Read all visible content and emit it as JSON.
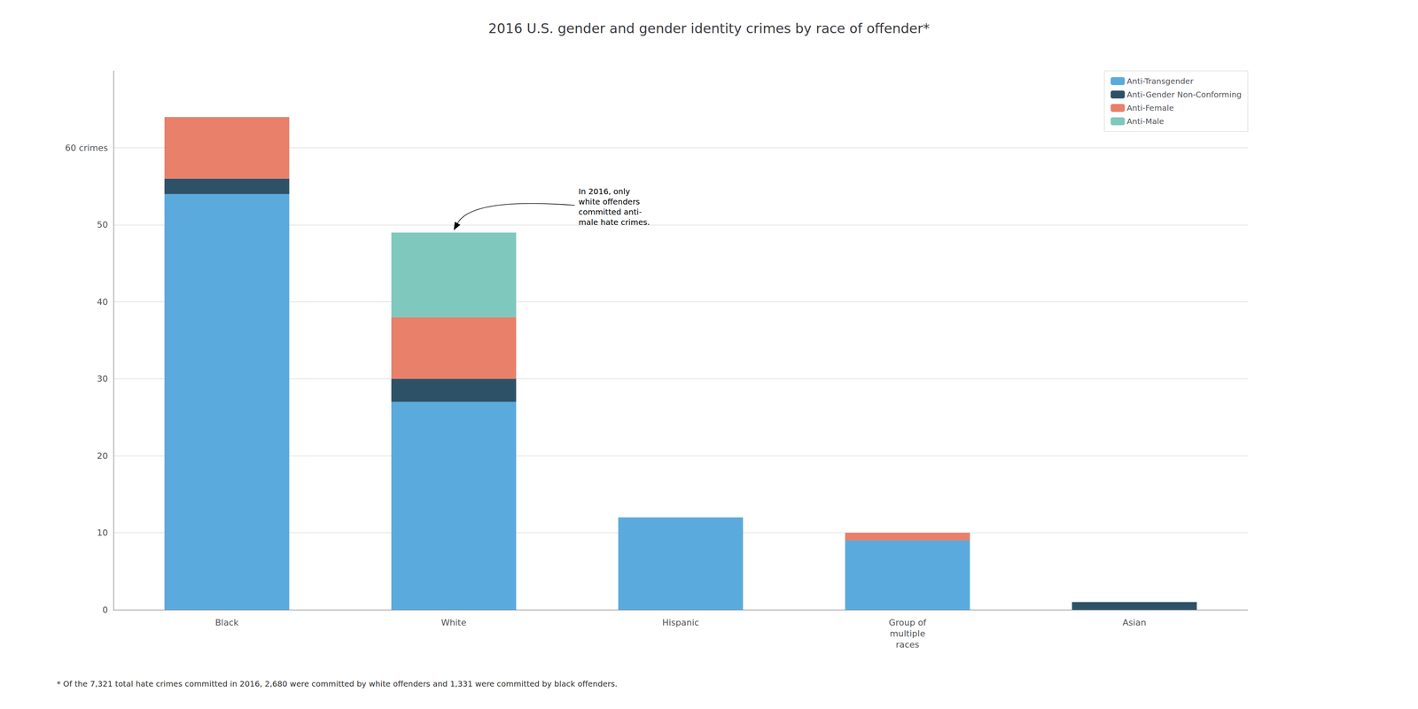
{
  "chart_data": {
    "type": "bar",
    "title": "2016 U.S. gender and gender identity crimes by race of offender*",
    "categories": [
      "Black",
      "White",
      "Hispanic",
      "Group of\nmultiple\nraces",
      "Asian"
    ],
    "series": [
      {
        "name": "Anti-Transgender",
        "color": "#5baade",
        "values": [
          54,
          27,
          12,
          9,
          0
        ]
      },
      {
        "name": "Anti-Gender Non-Conforming",
        "color": "#2d5167",
        "values": [
          2,
          3,
          0,
          0,
          1
        ]
      },
      {
        "name": "Anti-Female",
        "color": "#e8806a",
        "values": [
          8,
          8,
          0,
          1,
          0
        ]
      },
      {
        "name": "Anti-Male",
        "color": "#7ec8be",
        "values": [
          0,
          11,
          0,
          0,
          0
        ]
      }
    ],
    "stacked": true,
    "ylim": [
      0,
      70
    ],
    "yticks": [
      0,
      10,
      20,
      30,
      40,
      50,
      {
        "value": 60,
        "label": "60 crimes"
      }
    ],
    "grid": true,
    "legend": "upper right",
    "annotation": "In 2016, only\nwhite offenders\ncommitted anti-\nmale hate crimes.",
    "footnote": "* Of the 7,321 total hate crimes committed in 2016, 2,680 were committed by white offenders and 1,331 were committed by black offenders."
  }
}
